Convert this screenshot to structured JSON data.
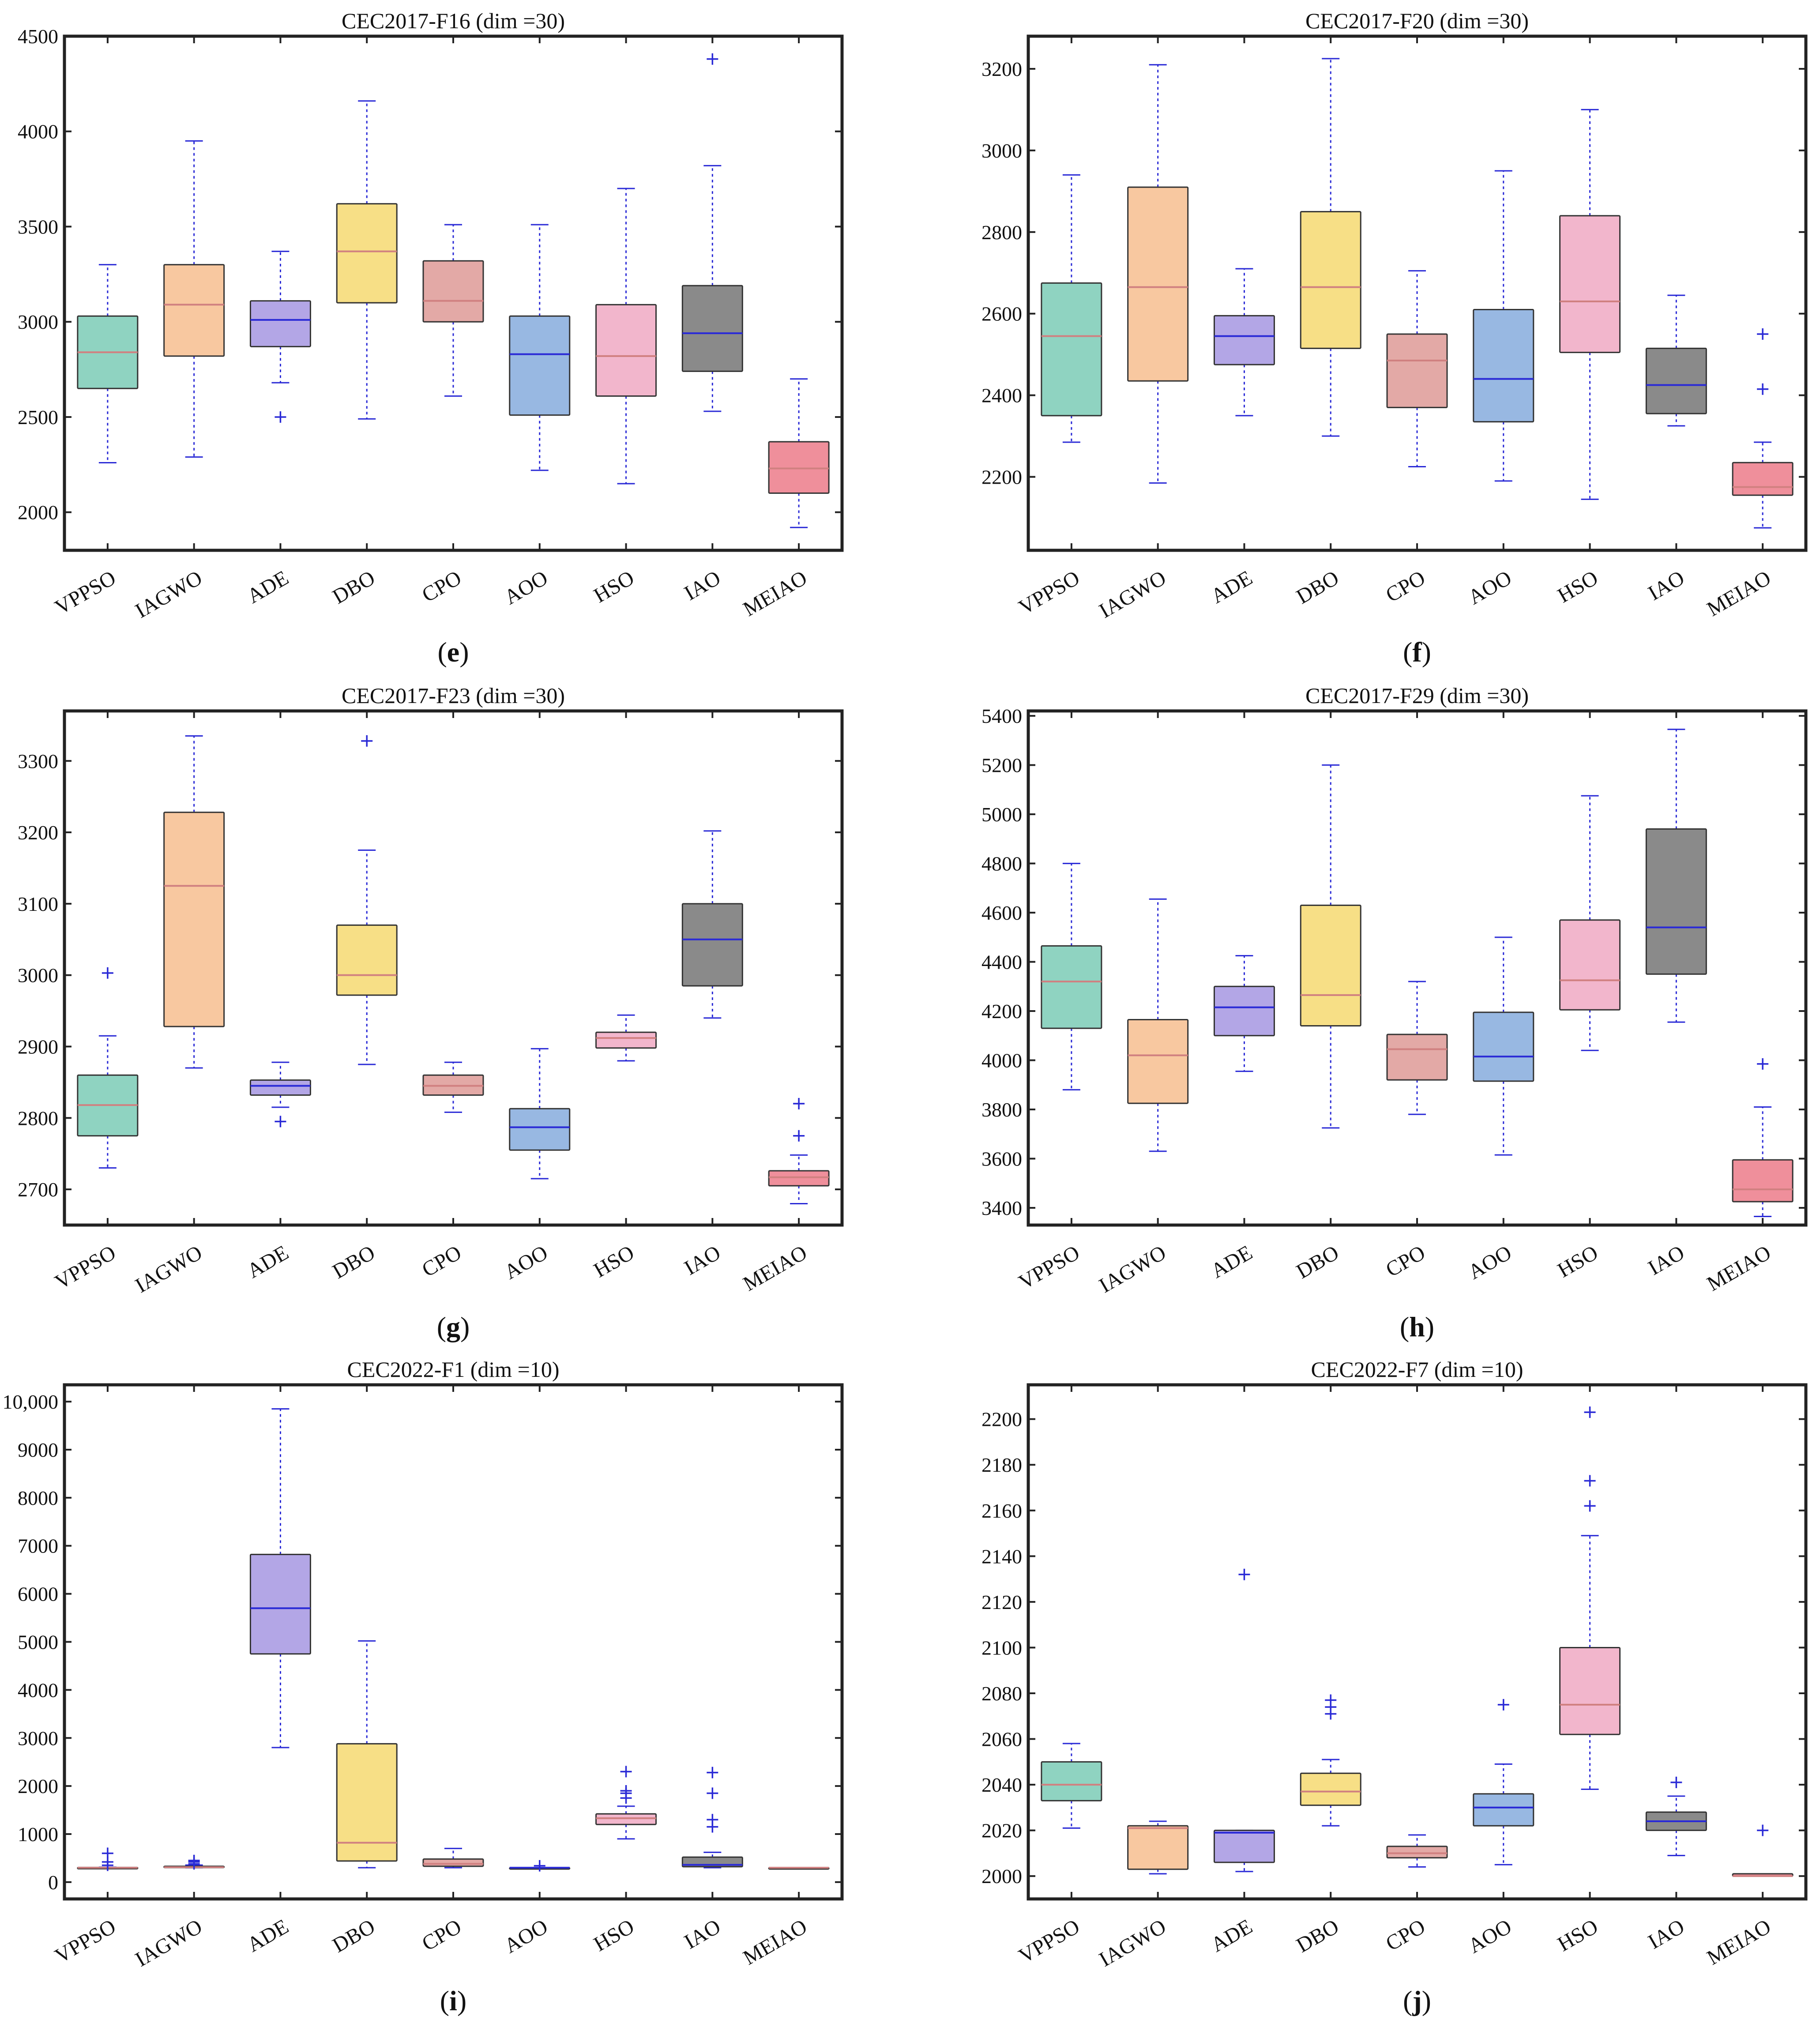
{
  "colors": {
    "VPPSO": "#8fd3c1",
    "IAGWO": "#f8c8a0",
    "ADE": "#b3a6e6",
    "DBO": "#f7df86",
    "CPO": "#e3a9a6",
    "AOO": "#98b8e2",
    "HSO": "#f2b6cc",
    "IAO": "#8a8a8a",
    "MEIAO": "#ef8f9b",
    "whisker": "#2a2ad6",
    "median_light": "#d08080",
    "median_dark": "#2a2ad6"
  },
  "chart_data": [
    {
      "type": "box",
      "panel": "(e)",
      "title": "CEC2017-F16 (dim =30)",
      "categories": [
        "VPPSO",
        "IAGWO",
        "ADE",
        "DBO",
        "CPO",
        "AOO",
        "HSO",
        "IAO",
        "MEIAO"
      ],
      "ylim": [
        1800,
        4500
      ],
      "yticks": [
        2000,
        2500,
        3000,
        3500,
        4000,
        4500
      ],
      "ytick_labels": [
        "2000",
        "2500",
        "3000",
        "3500",
        "4000",
        "4500"
      ],
      "boxes": [
        {
          "min": 2260,
          "q1": 2650,
          "median": 2840,
          "q3": 3030,
          "max": 3300,
          "outliers": []
        },
        {
          "min": 2290,
          "q1": 2820,
          "median": 3090,
          "q3": 3300,
          "max": 3950,
          "outliers": []
        },
        {
          "min": 2680,
          "q1": 2870,
          "median": 3010,
          "q3": 3110,
          "max": 3370,
          "outliers": [
            2500
          ]
        },
        {
          "min": 2490,
          "q1": 3100,
          "median": 3370,
          "q3": 3620,
          "max": 4160,
          "outliers": []
        },
        {
          "min": 2610,
          "q1": 3000,
          "median": 3110,
          "q3": 3320,
          "max": 3510,
          "outliers": []
        },
        {
          "min": 2220,
          "q1": 2510,
          "median": 2830,
          "q3": 3030,
          "max": 3510,
          "outliers": []
        },
        {
          "min": 2150,
          "q1": 2610,
          "median": 2820,
          "q3": 3090,
          "max": 3700,
          "outliers": []
        },
        {
          "min": 2530,
          "q1": 2740,
          "median": 2940,
          "q3": 3190,
          "max": 3820,
          "outliers": [
            4380
          ]
        },
        {
          "min": 1920,
          "q1": 2100,
          "median": 2230,
          "q3": 2370,
          "max": 2700,
          "outliers": []
        }
      ]
    },
    {
      "type": "box",
      "panel": "(f)",
      "title": "CEC2017-F20 (dim =30)",
      "categories": [
        "VPPSO",
        "IAGWO",
        "ADE",
        "DBO",
        "CPO",
        "AOO",
        "HSO",
        "IAO",
        "MEIAO"
      ],
      "ylim": [
        2020,
        3280
      ],
      "yticks": [
        2200,
        2400,
        2600,
        2800,
        3000,
        3200
      ],
      "ytick_labels": [
        "2200",
        "2400",
        "2600",
        "2800",
        "3000",
        "3200"
      ],
      "boxes": [
        {
          "min": 2285,
          "q1": 2350,
          "median": 2545,
          "q3": 2675,
          "max": 2940,
          "outliers": []
        },
        {
          "min": 2185,
          "q1": 2435,
          "median": 2665,
          "q3": 2910,
          "max": 3210,
          "outliers": []
        },
        {
          "min": 2350,
          "q1": 2475,
          "median": 2545,
          "q3": 2595,
          "max": 2710,
          "outliers": []
        },
        {
          "min": 2300,
          "q1": 2515,
          "median": 2665,
          "q3": 2850,
          "max": 3225,
          "outliers": []
        },
        {
          "min": 2225,
          "q1": 2370,
          "median": 2485,
          "q3": 2550,
          "max": 2705,
          "outliers": []
        },
        {
          "min": 2190,
          "q1": 2335,
          "median": 2440,
          "q3": 2610,
          "max": 2950,
          "outliers": []
        },
        {
          "min": 2145,
          "q1": 2505,
          "median": 2630,
          "q3": 2840,
          "max": 3100,
          "outliers": []
        },
        {
          "min": 2325,
          "q1": 2355,
          "median": 2425,
          "q3": 2515,
          "max": 2645,
          "outliers": []
        },
        {
          "min": 2075,
          "q1": 2155,
          "median": 2175,
          "q3": 2235,
          "max": 2285,
          "outliers": [
            2415,
            2550
          ]
        }
      ]
    },
    {
      "type": "box",
      "panel": "(g)",
      "title": "CEC2017-F23 (dim =30)",
      "categories": [
        "VPPSO",
        "IAGWO",
        "ADE",
        "DBO",
        "CPO",
        "AOO",
        "HSO",
        "IAO",
        "MEIAO"
      ],
      "ylim": [
        2650,
        3370
      ],
      "yticks": [
        2700,
        2800,
        2900,
        3000,
        3100,
        3200,
        3300
      ],
      "ytick_labels": [
        "2700",
        "2800",
        "2900",
        "3000",
        "3100",
        "3200",
        "3300"
      ],
      "boxes": [
        {
          "min": 2730,
          "q1": 2775,
          "median": 2818,
          "q3": 2860,
          "max": 2915,
          "outliers": [
            3003
          ]
        },
        {
          "min": 2870,
          "q1": 2928,
          "median": 3125,
          "q3": 3228,
          "max": 3335,
          "outliers": []
        },
        {
          "min": 2815,
          "q1": 2832,
          "median": 2845,
          "q3": 2853,
          "max": 2878,
          "outliers": [
            2795
          ]
        },
        {
          "min": 2875,
          "q1": 2972,
          "median": 3000,
          "q3": 3070,
          "max": 3175,
          "outliers": [
            3328
          ]
        },
        {
          "min": 2808,
          "q1": 2832,
          "median": 2845,
          "q3": 2860,
          "max": 2878,
          "outliers": []
        },
        {
          "min": 2715,
          "q1": 2755,
          "median": 2787,
          "q3": 2813,
          "max": 2897,
          "outliers": []
        },
        {
          "min": 2880,
          "q1": 2898,
          "median": 2912,
          "q3": 2920,
          "max": 2944,
          "outliers": []
        },
        {
          "min": 2940,
          "q1": 2985,
          "median": 3050,
          "q3": 3100,
          "max": 3202,
          "outliers": []
        },
        {
          "min": 2680,
          "q1": 2705,
          "median": 2717,
          "q3": 2726,
          "max": 2748,
          "outliers": [
            2775,
            2820
          ]
        }
      ]
    },
    {
      "type": "box",
      "panel": "(h)",
      "title": "CEC2017-F29 (dim =30)",
      "categories": [
        "VPPSO",
        "IAGWO",
        "ADE",
        "DBO",
        "CPO",
        "AOO",
        "HSO",
        "IAO",
        "MEIAO"
      ],
      "ylim": [
        3330,
        5420
      ],
      "yticks": [
        3400,
        3600,
        3800,
        4000,
        4200,
        4400,
        4600,
        4800,
        5000,
        5200,
        5400
      ],
      "ytick_labels": [
        "3400",
        "3600",
        "3800",
        "4000",
        "4200",
        "4400",
        "4600",
        "4800",
        "5000",
        "5200",
        "5400"
      ],
      "boxes": [
        {
          "min": 3880,
          "q1": 4130,
          "median": 4320,
          "q3": 4465,
          "max": 4800,
          "outliers": []
        },
        {
          "min": 3630,
          "q1": 3825,
          "median": 4020,
          "q3": 4165,
          "max": 4655,
          "outliers": []
        },
        {
          "min": 3955,
          "q1": 4100,
          "median": 4215,
          "q3": 4300,
          "max": 4425,
          "outliers": []
        },
        {
          "min": 3725,
          "q1": 4140,
          "median": 4265,
          "q3": 4630,
          "max": 5200,
          "outliers": []
        },
        {
          "min": 3780,
          "q1": 3920,
          "median": 4045,
          "q3": 4105,
          "max": 4320,
          "outliers": []
        },
        {
          "min": 3615,
          "q1": 3915,
          "median": 4015,
          "q3": 4195,
          "max": 4500,
          "outliers": []
        },
        {
          "min": 4040,
          "q1": 4205,
          "median": 4325,
          "q3": 4570,
          "max": 5075,
          "outliers": []
        },
        {
          "min": 4155,
          "q1": 4350,
          "median": 4540,
          "q3": 4940,
          "max": 5345,
          "outliers": []
        },
        {
          "min": 3365,
          "q1": 3425,
          "median": 3475,
          "q3": 3595,
          "max": 3810,
          "outliers": [
            3985
          ]
        }
      ]
    },
    {
      "type": "box",
      "panel": "(i)",
      "title": "CEC2022-F1 (dim =10)",
      "categories": [
        "VPPSO",
        "IAGWO",
        "ADE",
        "DBO",
        "CPO",
        "AOO",
        "HSO",
        "IAO",
        "MEIAO"
      ],
      "ylim": [
        -350,
        10350
      ],
      "yticks": [
        0,
        1000,
        2000,
        3000,
        4000,
        5000,
        6000,
        7000,
        8000,
        9000,
        10000
      ],
      "ytick_labels": [
        "0",
        "1000",
        "2000",
        "3000",
        "4000",
        "5000",
        "6000",
        "7000",
        "8000",
        "9000",
        "10,000"
      ],
      "boxes": [
        {
          "min": 300,
          "q1": 300,
          "median": 300,
          "q3": 305,
          "max": 310,
          "outliers": [
            350,
            420,
            600
          ]
        },
        {
          "min": 300,
          "q1": 302,
          "median": 310,
          "q3": 330,
          "max": 355,
          "outliers": [
            380,
            420,
            450
          ]
        },
        {
          "min": 2800,
          "q1": 4750,
          "median": 5700,
          "q3": 6820,
          "max": 9850,
          "outliers": []
        },
        {
          "min": 300,
          "q1": 440,
          "median": 820,
          "q3": 2880,
          "max": 5020,
          "outliers": []
        },
        {
          "min": 300,
          "q1": 330,
          "median": 380,
          "q3": 480,
          "max": 700,
          "outliers": []
        },
        {
          "min": 300,
          "q1": 300,
          "median": 300,
          "q3": 300,
          "max": 300,
          "outliers": [
            340
          ]
        },
        {
          "min": 900,
          "q1": 1200,
          "median": 1330,
          "q3": 1420,
          "max": 1580,
          "outliers": [
            1750,
            1850,
            1900,
            2300
          ]
        },
        {
          "min": 300,
          "q1": 320,
          "median": 360,
          "q3": 520,
          "max": 620,
          "outliers": [
            1150,
            1300,
            1850,
            2280
          ]
        },
        {
          "min": 300,
          "q1": 300,
          "median": 300,
          "q3": 300,
          "max": 300,
          "outliers": []
        }
      ]
    },
    {
      "type": "box",
      "panel": "(j)",
      "title": "CEC2022-F7 (dim =10)",
      "categories": [
        "VPPSO",
        "IAGWO",
        "ADE",
        "DBO",
        "CPO",
        "AOO",
        "HSO",
        "IAO",
        "MEIAO"
      ],
      "ylim": [
        1990,
        2215
      ],
      "yticks": [
        2000,
        2020,
        2040,
        2060,
        2080,
        2100,
        2120,
        2140,
        2160,
        2180,
        2200
      ],
      "ytick_labels": [
        "2000",
        "2020",
        "2040",
        "2060",
        "2080",
        "2100",
        "2120",
        "2140",
        "2160",
        "2180",
        "2200"
      ],
      "boxes": [
        {
          "min": 2021,
          "q1": 2033,
          "median": 2040,
          "q3": 2050,
          "max": 2058,
          "outliers": []
        },
        {
          "min": 2001,
          "q1": 2003,
          "median": 2021,
          "q3": 2022,
          "max": 2024,
          "outliers": []
        },
        {
          "min": 2002,
          "q1": 2006,
          "median": 2019,
          "q3": 2020,
          "max": 2020,
          "outliers": [
            2132
          ]
        },
        {
          "min": 2022,
          "q1": 2031,
          "median": 2037,
          "q3": 2045,
          "max": 2051,
          "outliers": [
            2071,
            2074,
            2077
          ]
        },
        {
          "min": 2004,
          "q1": 2008,
          "median": 2010,
          "q3": 2013,
          "max": 2018,
          "outliers": []
        },
        {
          "min": 2005,
          "q1": 2022,
          "median": 2030,
          "q3": 2036,
          "max": 2049,
          "outliers": [
            2075
          ]
        },
        {
          "min": 2038,
          "q1": 2062,
          "median": 2075,
          "q3": 2100,
          "max": 2149,
          "outliers": [
            2162,
            2173,
            2203
          ]
        },
        {
          "min": 2009,
          "q1": 2020,
          "median": 2024,
          "q3": 2028,
          "max": 2035,
          "outliers": [
            2041
          ]
        },
        {
          "min": 2000,
          "q1": 2000,
          "median": 2000,
          "q3": 2001,
          "max": 2001,
          "outliers": [
            2020
          ]
        }
      ]
    }
  ]
}
